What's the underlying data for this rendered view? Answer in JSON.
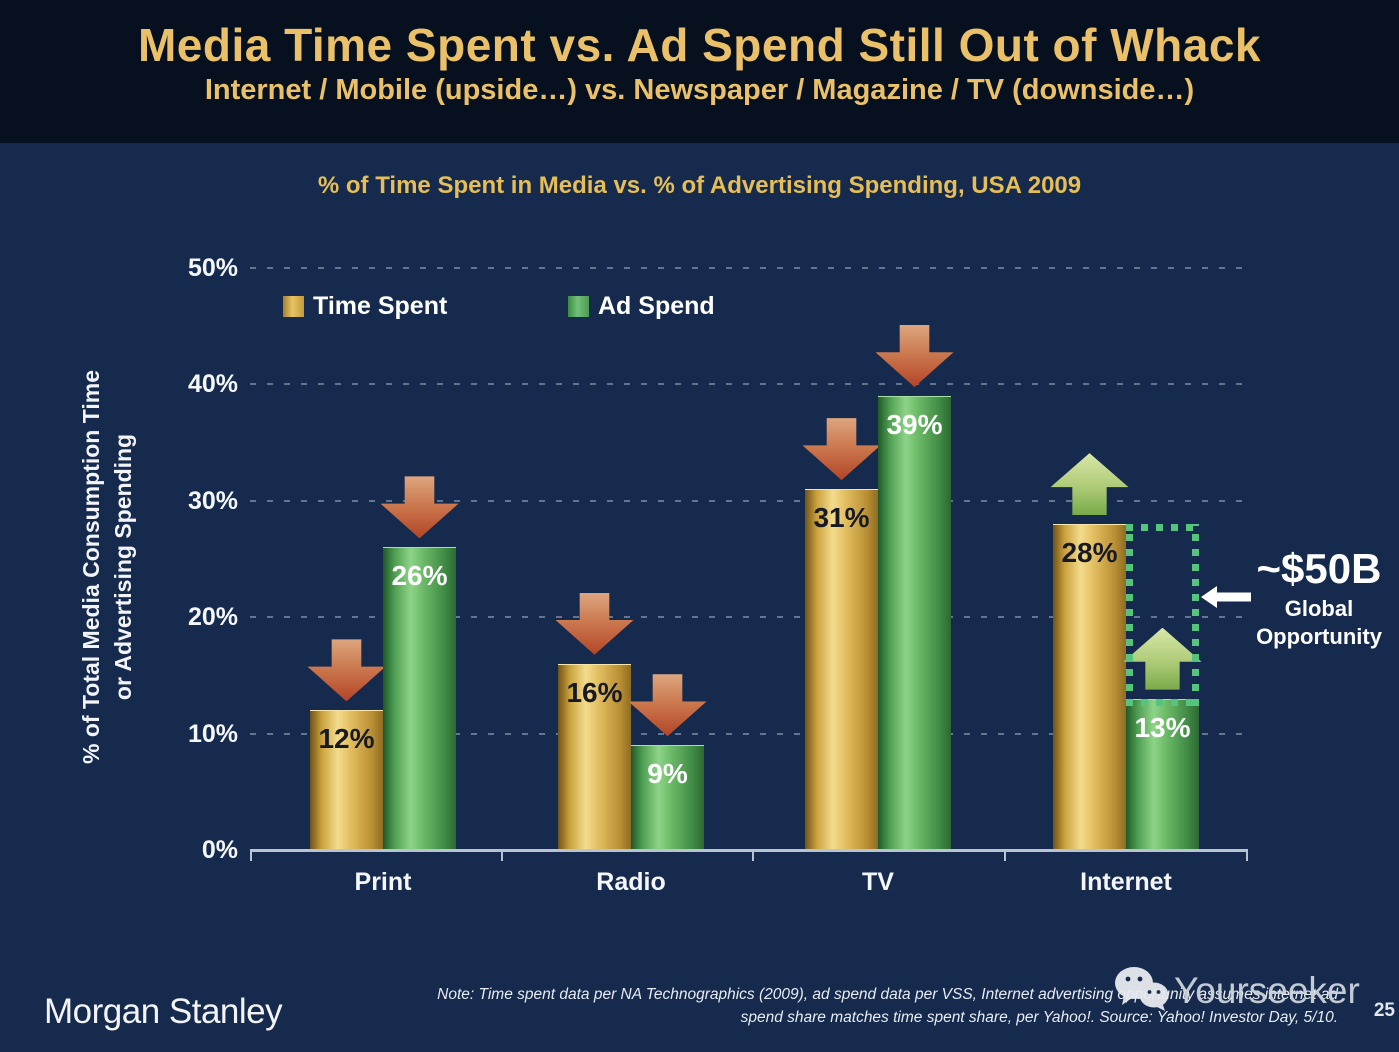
{
  "header": {
    "title": "Media Time Spent vs. Ad Spend Still Out of Whack",
    "subtitle": "Internet / Mobile (upside…) vs. Newspaper / Magazine / TV (downside…)"
  },
  "chart_data": {
    "type": "bar",
    "title": "% of Time Spent in Media vs. % of Advertising Spending, USA 2009",
    "categories": [
      "Print",
      "Radio",
      "TV",
      "Internet"
    ],
    "series": [
      {
        "name": "Time Spent",
        "values": [
          12,
          16,
          31,
          28
        ],
        "labels": [
          "12%",
          "16%",
          "31%",
          "28%"
        ],
        "color": "#d9a93f"
      },
      {
        "name": "Ad Spend",
        "values": [
          26,
          9,
          39,
          13
        ],
        "labels": [
          "26%",
          "9%",
          "39%",
          "13%"
        ],
        "color": "#55a55e"
      }
    ],
    "ylabel_line1": "% of Total Media Consumption Time",
    "ylabel_line2": "or Advertising Spending",
    "yticks": [
      {
        "label": "0%",
        "value": 0
      },
      {
        "label": "10%",
        "value": 10
      },
      {
        "label": "20%",
        "value": 20
      },
      {
        "label": "30%",
        "value": 30
      },
      {
        "label": "40%",
        "value": 40
      },
      {
        "label": "50%",
        "value": 50
      }
    ],
    "ylim": [
      0,
      50
    ],
    "grid": "dotted-horizontal",
    "legend_position": "inside-top-left",
    "trend_arrows": [
      [
        "down",
        "down"
      ],
      [
        "down",
        "down"
      ],
      [
        "down",
        "down"
      ],
      [
        "up",
        "up"
      ]
    ],
    "opportunity": {
      "value_label": "~$50B",
      "caption_line1": "Global",
      "caption_line2": "Opportunity",
      "category": "Internet",
      "box_from_pct": 13,
      "box_to_pct": 28
    },
    "colors": {
      "time_spent_bar": "#d9a93f",
      "ad_spend_bar": "#55a55e",
      "down_arrow": "#bf5b35",
      "up_arrow": "#a9c873",
      "opportunity_box": "#57c47d",
      "title_gold": "#e9c36a"
    }
  },
  "footer": {
    "brand": "Morgan Stanley",
    "note_line1": "Note: Time spent data per NA Technographics (2009), ad spend data per VSS, Internet advertising opportunity assumes internet ad",
    "note_line2": "spend share matches time spent share, per Yahoo!. Source: Yahoo! Investor Day, 5/10.",
    "watermark": "Yourseeker",
    "page_number": "25"
  }
}
